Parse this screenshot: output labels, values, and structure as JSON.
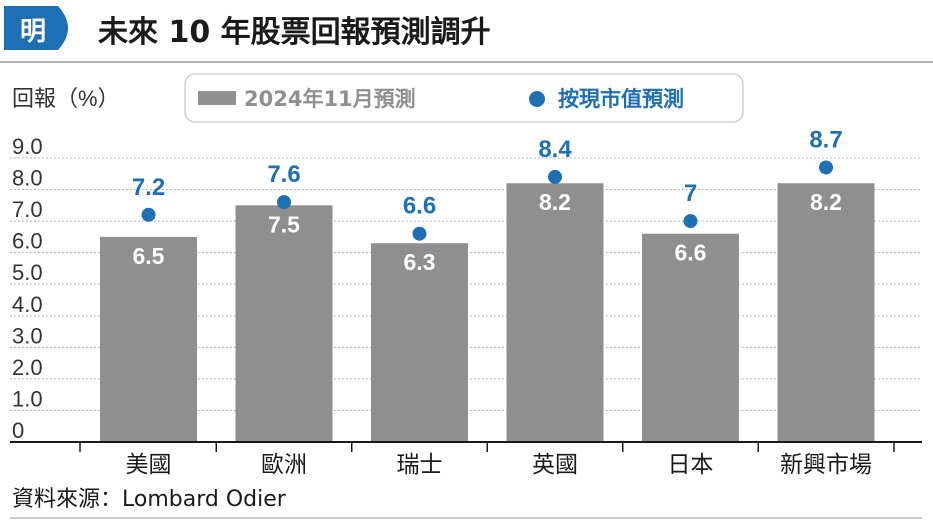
{
  "header": {
    "logo_glyph": "明",
    "title": "未來 10 年股票回報預測調升"
  },
  "colors": {
    "accent": "#1f6fb5",
    "bar": "#8f8f8f",
    "grid": "#a0a0a0",
    "text": "#1a1a1a"
  },
  "chart_data": {
    "type": "bar",
    "categories": [
      "美國",
      "歐洲",
      "瑞士",
      "英國",
      "日本",
      "新興市場"
    ],
    "series": [
      {
        "name": "2024年11月預測",
        "style": "bar",
        "values": [
          6.5,
          7.5,
          6.3,
          8.2,
          6.6,
          8.2
        ]
      },
      {
        "name": "按現市值預測",
        "style": "dot",
        "values": [
          7.2,
          7.6,
          6.6,
          8.4,
          7.0,
          8.7
        ]
      }
    ],
    "ylabel": "回報（%）",
    "ylim": [
      0,
      9
    ],
    "yticks": [
      "0",
      "1.0",
      "2.0",
      "3.0",
      "4.0",
      "5.0",
      "6.0",
      "7.0",
      "8.0",
      "9.0"
    ],
    "grid": true,
    "legend": "top-center"
  },
  "source": "資料來源：Lombard Odier"
}
